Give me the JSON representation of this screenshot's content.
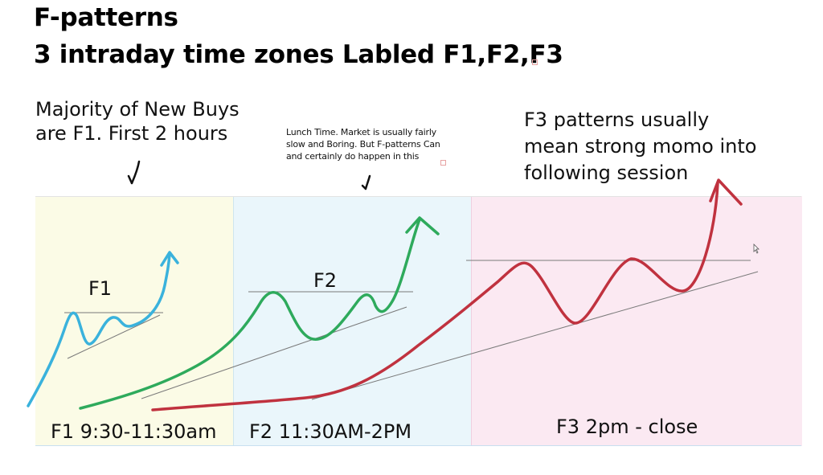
{
  "header": {
    "title_line1": "F-patterns",
    "title_line2": "3 intraday time zones Labled F1,F2,F3"
  },
  "notes": {
    "f1_line1": "Majority of New Buys",
    "f1_line2": "are F1. First 2 hours",
    "f2_line1": "Lunch Time. Market is usually fairly",
    "f2_line2": "slow and Boring. But F-patterns Can",
    "f2_line3": "and certainly do happen in this",
    "f3_line1": "F3 patterns usually",
    "f3_line2": "mean strong momo into",
    "f3_line3": "following session"
  },
  "zones": [
    {
      "id": "F1",
      "label": "F1 9:30-11:30am",
      "color": "#fbfbe6",
      "curve_color": "#3ab2dc"
    },
    {
      "id": "F2",
      "label": "F2 11:30AM-2PM",
      "color": "#eaf6fb",
      "curve_color": "#2eaa5c"
    },
    {
      "id": "F3",
      "label": "F3 2pm - close",
      "color": "#fbe9f2",
      "curve_color": "#c0323f"
    }
  ],
  "pattern_labels": {
    "f1": "F1",
    "f2": "F2"
  },
  "icons": {
    "arrow_head": "arrow-up-icon",
    "check_mark": "down-arrow-tick-icon"
  }
}
